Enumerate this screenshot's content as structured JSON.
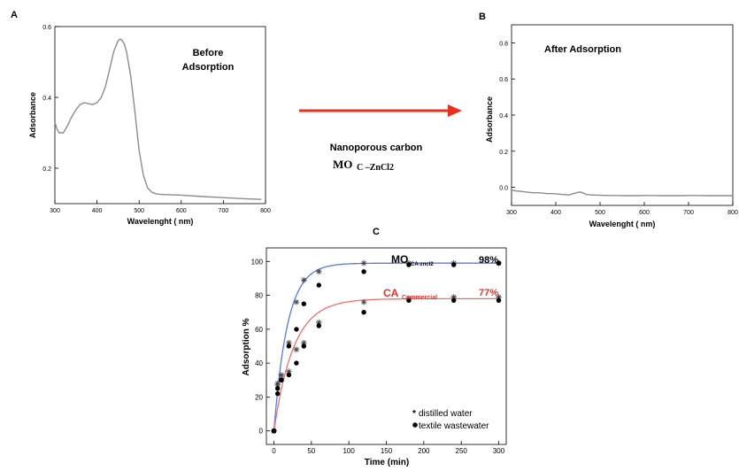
{
  "colors": {
    "spectrum_line": "#8c8c8c",
    "arrow": "#e8321e",
    "fit_blue": "#5a78e6",
    "fit_red": "#f07070",
    "label_red": "#e63228",
    "marker": "#000000"
  },
  "arrow": {
    "label_line1": "Nanoporous carbon",
    "label_mo": "MO",
    "label_sub": "C –ZnCl2"
  },
  "chart_data": [
    {
      "panel": "A",
      "type": "line",
      "panel_label": "A",
      "annotation_line1": "Before",
      "annotation_line2": "Adsorption",
      "xlabel": "Wavelenght ( nm)",
      "ylabel": "Adsorbance",
      "xlim": [
        300,
        800
      ],
      "ylim": [
        0.1,
        0.6
      ],
      "xticks": [
        "300",
        "400",
        "500",
        "600",
        "700",
        "800"
      ],
      "xtick_values": [
        300,
        400,
        500,
        600,
        700,
        800
      ],
      "yticks": [
        "0.2",
        "0.4",
        "0.6"
      ],
      "ytick_values": [
        0.2,
        0.4,
        0.6
      ],
      "x": [
        300,
        305,
        310,
        320,
        330,
        340,
        350,
        360,
        370,
        380,
        390,
        400,
        410,
        420,
        430,
        440,
        450,
        455,
        460,
        465,
        470,
        480,
        490,
        500,
        510,
        520,
        530,
        540,
        550,
        600,
        650,
        700,
        750,
        790
      ],
      "y": [
        0.33,
        0.31,
        0.3,
        0.3,
        0.32,
        0.345,
        0.365,
        0.38,
        0.385,
        0.382,
        0.38,
        0.385,
        0.4,
        0.43,
        0.48,
        0.53,
        0.56,
        0.565,
        0.56,
        0.55,
        0.53,
        0.46,
        0.36,
        0.25,
        0.18,
        0.145,
        0.132,
        0.128,
        0.126,
        0.124,
        0.12,
        0.117,
        0.114,
        0.112
      ]
    },
    {
      "panel": "B",
      "type": "line",
      "panel_label": "B",
      "annotation": "After Adsorption",
      "xlabel": "Wavelenght ( nm)",
      "ylabel": "Adsorbance",
      "xlim": [
        300,
        800
      ],
      "ylim": [
        -0.1,
        0.9
      ],
      "xticks": [
        "300",
        "400",
        "500",
        "600",
        "700",
        "800"
      ],
      "xtick_values": [
        300,
        400,
        500,
        600,
        700,
        800
      ],
      "yticks": [
        "0.0",
        "0.2",
        "0.4",
        "0.6",
        "0.8"
      ],
      "ytick_values": [
        0.0,
        0.2,
        0.4,
        0.6,
        0.8
      ],
      "x": [
        300,
        310,
        320,
        330,
        340,
        350,
        360,
        370,
        380,
        390,
        400,
        410,
        420,
        430,
        440,
        450,
        455,
        460,
        470,
        480,
        500,
        520,
        540,
        560,
        580,
        600,
        620,
        640,
        660,
        680,
        700,
        720,
        740,
        760,
        780,
        800
      ],
      "y": [
        -0.015,
        -0.02,
        -0.022,
        -0.025,
        -0.028,
        -0.03,
        -0.03,
        -0.032,
        -0.035,
        -0.035,
        -0.036,
        -0.038,
        -0.04,
        -0.042,
        -0.035,
        -0.028,
        -0.026,
        -0.03,
        -0.04,
        -0.042,
        -0.044,
        -0.045,
        -0.045,
        -0.046,
        -0.046,
        -0.045,
        -0.045,
        -0.046,
        -0.046,
        -0.046,
        -0.045,
        -0.045,
        -0.046,
        -0.046,
        -0.046,
        -0.046
      ]
    },
    {
      "panel": "C",
      "type": "scatter",
      "panel_label": "C",
      "xlabel": "Time (min)",
      "ylabel": "Adsorption %",
      "xlim": [
        -10,
        310
      ],
      "ylim": [
        -8,
        108
      ],
      "xticks": [
        "0",
        "50",
        "100",
        "150",
        "200",
        "250",
        "300"
      ],
      "xtick_values": [
        0,
        50,
        100,
        150,
        200,
        250,
        300
      ],
      "yticks": [
        "0",
        "20",
        "40",
        "60",
        "80",
        "100"
      ],
      "ytick_values": [
        0,
        20,
        40,
        60,
        80,
        100
      ],
      "annotations": [
        {
          "text_main": "MO",
          "text_sub": "CA-zncl2",
          "color": "#000000",
          "percent": "98%"
        },
        {
          "text_main": "CA",
          "text_sub": "Commercial",
          "color": "#e63228",
          "percent": "77%"
        }
      ],
      "legend": {
        "placement": "bottom-right",
        "entries": [
          {
            "marker": "asterisk",
            "label": "distilled water"
          },
          {
            "marker": "circle",
            "label": "textile wastewater"
          }
        ]
      },
      "series": [
        {
          "group": "MO",
          "medium": "distilled water",
          "marker": "asterisk",
          "x": [
            0,
            5,
            10,
            20,
            30,
            40,
            60,
            120,
            180,
            240,
            300
          ],
          "y": [
            0,
            28,
            33,
            52,
            76,
            89,
            94,
            99,
            99,
            99,
            99
          ]
        },
        {
          "group": "MO",
          "medium": "textile wastewater",
          "marker": "circle",
          "x": [
            0,
            5,
            10,
            20,
            30,
            40,
            60,
            120,
            180,
            240,
            300
          ],
          "y": [
            0,
            22,
            30,
            50,
            60,
            75,
            86,
            94,
            98,
            98,
            99
          ]
        },
        {
          "group": "CA",
          "medium": "distilled water",
          "marker": "asterisk",
          "x": [
            0,
            5,
            10,
            20,
            30,
            40,
            60,
            120,
            180,
            240,
            300
          ],
          "y": [
            0,
            27,
            31,
            35,
            48,
            52,
            64,
            76,
            78,
            79,
            79
          ]
        },
        {
          "group": "CA",
          "medium": "textile wastewater",
          "marker": "circle",
          "x": [
            0,
            5,
            10,
            20,
            30,
            40,
            60,
            120,
            180,
            240,
            300
          ],
          "y": [
            0,
            25,
            30,
            33,
            40,
            50,
            62,
            70,
            77,
            77,
            77
          ]
        }
      ],
      "fits": [
        {
          "group": "MO",
          "color": "#5a78e6",
          "plateau": 99,
          "rate": 0.055
        },
        {
          "group": "CA",
          "color": "#f07070",
          "plateau": 78,
          "rate": 0.038
        }
      ]
    }
  ]
}
